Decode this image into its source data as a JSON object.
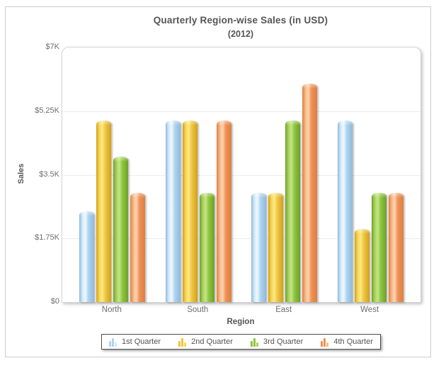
{
  "chart": {
    "title": "Quarterly Region-wise Sales (in USD)",
    "subtitle": "(2012)",
    "xlabel": "Region",
    "ylabel": "Sales"
  },
  "chart_data": {
    "type": "bar",
    "title": "Quarterly Region-wise Sales (in USD)",
    "subtitle": "(2012)",
    "xlabel": "Region",
    "ylabel": "Sales",
    "categories": [
      "North",
      "South",
      "East",
      "West"
    ],
    "series": [
      {
        "name": "1st Quarter",
        "values": [
          2500,
          5000,
          3000,
          5000
        ],
        "color": "#A9CFEC",
        "edge": "#8FB9DC",
        "light": "#D6EBF9",
        "highlight": "#EFF8FE",
        "mid": "#AED4EE"
      },
      {
        "name": "2nd Quarter",
        "values": [
          5000,
          5000,
          3000,
          2000
        ],
        "color": "#EEC53F",
        "edge": "#D2A01C",
        "light": "#F7D853",
        "highlight": "#FAE98A",
        "mid": "#EEC53F"
      },
      {
        "name": "3rd Quarter",
        "values": [
          4000,
          3000,
          5000,
          3000
        ],
        "color": "#8CC63F",
        "edge": "#6FA02A",
        "light": "#A8D35D",
        "highlight": "#C6E488",
        "mid": "#8CC63F"
      },
      {
        "name": "4th Quarter",
        "values": [
          3000,
          5000,
          6000,
          3000
        ],
        "color": "#F09055",
        "edge": "#DC8040",
        "light": "#F8B988",
        "highlight": "#FCD4B2",
        "mid": "#F09055"
      }
    ],
    "ylim": [
      0,
      7000
    ],
    "yticks": [
      {
        "label": "$7K",
        "value": 7000
      },
      {
        "label": "$5.25K",
        "value": 5250
      },
      {
        "label": "$3.5K",
        "value": 3500
      },
      {
        "label": "$1.75K",
        "value": 1750
      },
      {
        "label": "$0",
        "value": 0
      }
    ],
    "grid": true,
    "legend_position": "bottom",
    "group_centers_pct": [
      14,
      38,
      62,
      86
    ]
  }
}
